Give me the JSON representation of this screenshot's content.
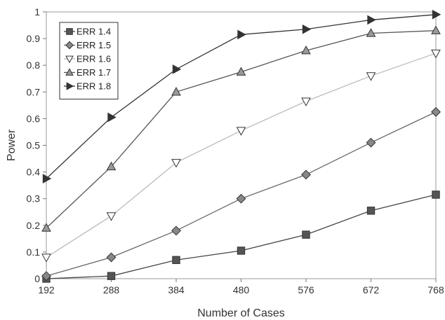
{
  "chart_data": {
    "type": "line",
    "title": "",
    "xlabel": "Number of Cases",
    "ylabel": "Power",
    "x": [
      192,
      288,
      384,
      480,
      576,
      672,
      768
    ],
    "x_tick_labels": [
      "192",
      "288",
      "384",
      "480",
      "576",
      "672",
      "768"
    ],
    "y_ticks": [
      0,
      0.1,
      0.2,
      0.3,
      0.4,
      0.5,
      0.6,
      0.7,
      0.8,
      0.9,
      1
    ],
    "y_tick_labels": [
      "0",
      "0.1",
      "0.2",
      "0.3",
      "0.4",
      "0.5",
      "0.6",
      "0.7",
      "0.8",
      "0.9",
      "1"
    ],
    "ylim": [
      0,
      1
    ],
    "xlim": [
      192,
      768
    ],
    "grid": false,
    "legend_position": "top-left",
    "series": [
      {
        "name": "ERR 1.4",
        "marker": "square",
        "color": "#444444",
        "marker_fill": "#555555",
        "values": [
          0.0,
          0.01,
          0.07,
          0.105,
          0.165,
          0.255,
          0.315
        ]
      },
      {
        "name": "ERR 1.5",
        "marker": "diamond",
        "color": "#666666",
        "marker_fill": "#888888",
        "values": [
          0.01,
          0.08,
          0.18,
          0.3,
          0.39,
          0.51,
          0.625
        ]
      },
      {
        "name": "ERR 1.6",
        "marker": "triangle-down",
        "color": "#bbbbbb",
        "marker_fill": "#ffffff",
        "values": [
          0.08,
          0.235,
          0.435,
          0.555,
          0.665,
          0.76,
          0.845
        ]
      },
      {
        "name": "ERR 1.7",
        "marker": "triangle-up",
        "color": "#555555",
        "marker_fill": "#999999",
        "values": [
          0.19,
          0.42,
          0.7,
          0.775,
          0.855,
          0.92,
          0.93
        ]
      },
      {
        "name": "ERR 1.8",
        "marker": "triangle-right",
        "color": "#333333",
        "marker_fill": "#333333",
        "values": [
          0.375,
          0.605,
          0.785,
          0.915,
          0.935,
          0.97,
          0.99
        ]
      }
    ]
  }
}
